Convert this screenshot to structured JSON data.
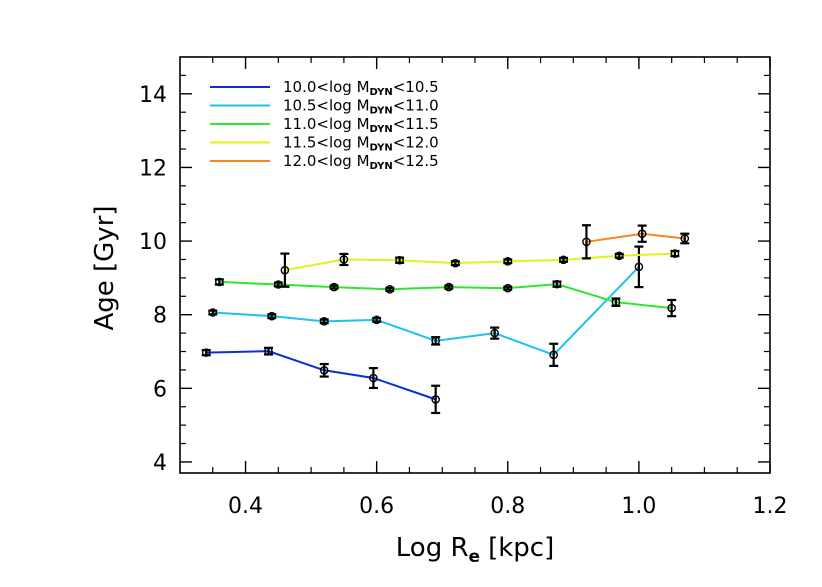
{
  "chart_data": {
    "type": "line",
    "xlabel": {
      "main": "Log R",
      "sub": "e",
      "unit": "[kpc]"
    },
    "ylabel": "Age  [Gyr]",
    "xlim": [
      0.3,
      1.2
    ],
    "ylim": [
      3.7,
      15.0
    ],
    "xticks": [
      "0.4",
      "0.6",
      "0.8",
      "1.0",
      "1.2"
    ],
    "yticks": [
      "4",
      "6",
      "8",
      "10",
      "12",
      "14"
    ],
    "grid": false,
    "legend_position": "top-left",
    "series": [
      {
        "name": "10.0<log M_DYN<10.5",
        "label": {
          "pre": "10.0<log  M",
          "sub": "DYN",
          "post": "<10.5"
        },
        "color": "#0b2fd6",
        "points": [
          {
            "x": 0.34,
            "y": 6.97,
            "err": 0.07
          },
          {
            "x": 0.435,
            "y": 7.01,
            "err": 0.09
          },
          {
            "x": 0.52,
            "y": 6.49,
            "err": 0.17
          },
          {
            "x": 0.595,
            "y": 6.28,
            "err": 0.27
          },
          {
            "x": 0.69,
            "y": 5.7,
            "err": 0.37
          }
        ]
      },
      {
        "name": "10.5<log M_DYN<11.0",
        "label": {
          "pre": "10.5<log  M",
          "sub": "DYN",
          "post": "<11.0"
        },
        "color": "#1cc3ea",
        "points": [
          {
            "x": 0.35,
            "y": 8.06,
            "err": 0.05
          },
          {
            "x": 0.44,
            "y": 7.96,
            "err": 0.05
          },
          {
            "x": 0.52,
            "y": 7.82,
            "err": 0.05
          },
          {
            "x": 0.6,
            "y": 7.86,
            "err": 0.05
          },
          {
            "x": 0.69,
            "y": 7.29,
            "err": 0.1
          },
          {
            "x": 0.78,
            "y": 7.5,
            "err": 0.15
          },
          {
            "x": 0.87,
            "y": 6.91,
            "err": 0.3
          },
          {
            "x": 1.0,
            "y": 9.3,
            "err": 0.55
          }
        ]
      },
      {
        "name": "11.0<log M_DYN<11.5",
        "label": {
          "pre": "11.0<log  M",
          "sub": "DYN",
          "post": "<11.5"
        },
        "color": "#2fe52f",
        "points": [
          {
            "x": 0.36,
            "y": 8.89,
            "err": 0.07
          },
          {
            "x": 0.45,
            "y": 8.82,
            "err": 0.05
          },
          {
            "x": 0.535,
            "y": 8.75,
            "err": 0.04
          },
          {
            "x": 0.62,
            "y": 8.69,
            "err": 0.04
          },
          {
            "x": 0.71,
            "y": 8.75,
            "err": 0.04
          },
          {
            "x": 0.8,
            "y": 8.72,
            "err": 0.04
          },
          {
            "x": 0.875,
            "y": 8.83,
            "err": 0.07
          },
          {
            "x": 0.965,
            "y": 8.34,
            "err": 0.1
          },
          {
            "x": 1.05,
            "y": 8.18,
            "err": 0.22
          }
        ]
      },
      {
        "name": "11.5<log M_DYN<12.0",
        "label": {
          "pre": "11.5<log  M",
          "sub": "DYN",
          "post": "<12.0"
        },
        "color": "#e3f21b",
        "points": [
          {
            "x": 0.46,
            "y": 9.21,
            "err": 0.45
          },
          {
            "x": 0.55,
            "y": 9.5,
            "err": 0.15
          },
          {
            "x": 0.635,
            "y": 9.48,
            "err": 0.07
          },
          {
            "x": 0.72,
            "y": 9.4,
            "err": 0.05
          },
          {
            "x": 0.8,
            "y": 9.45,
            "err": 0.05
          },
          {
            "x": 0.885,
            "y": 9.49,
            "err": 0.05
          },
          {
            "x": 0.97,
            "y": 9.6,
            "err": 0.05
          },
          {
            "x": 1.055,
            "y": 9.66,
            "err": 0.07
          }
        ]
      },
      {
        "name": "12.0<log M_DYN<12.5",
        "label": {
          "pre": "12.0<log  M",
          "sub": "DYN",
          "post": "<12.5"
        },
        "color": "#f7861e",
        "points": [
          {
            "x": 0.92,
            "y": 9.98,
            "err": 0.45
          },
          {
            "x": 1.005,
            "y": 10.2,
            "err": 0.22
          },
          {
            "x": 1.07,
            "y": 10.07,
            "err": 0.13
          }
        ]
      }
    ]
  }
}
